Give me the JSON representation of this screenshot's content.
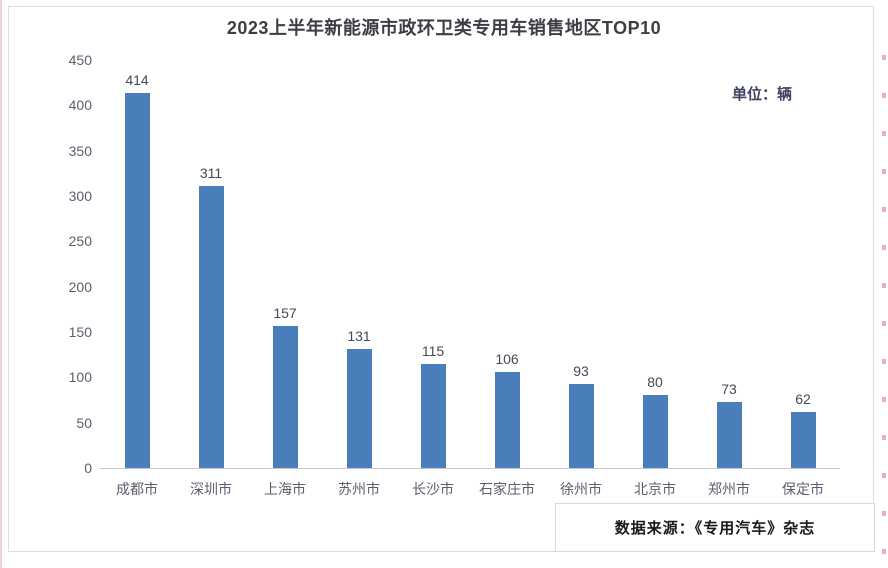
{
  "page": {
    "title": "2023上半年新能源市政环卫类专用车销售地区TOP10",
    "unit_label": "单位：辆",
    "source_label": "数据来源：《专用汽车》杂志"
  },
  "chart_data": {
    "type": "bar",
    "title": "2023上半年新能源市政环卫类专用车销售地区TOP10",
    "unit": "辆",
    "categories": [
      "成都市",
      "深圳市",
      "上海市",
      "苏州市",
      "长沙市",
      "石家庄市",
      "徐州市",
      "北京市",
      "郑州市",
      "保定市"
    ],
    "values": [
      414,
      311,
      157,
      131,
      115,
      106,
      93,
      80,
      73,
      62
    ],
    "xlabel": "",
    "ylabel": "",
    "ylim": [
      0,
      450
    ],
    "yticks": [
      0,
      50,
      100,
      150,
      200,
      250,
      300,
      350,
      400,
      450
    ],
    "grid": false,
    "legend": "none",
    "data_labels": true,
    "bar_color": "#4a7ebb",
    "axis_label_color": "#5d5d6e",
    "value_label_color": "#47475a",
    "source": "数据来源：《专用汽车》杂志"
  }
}
